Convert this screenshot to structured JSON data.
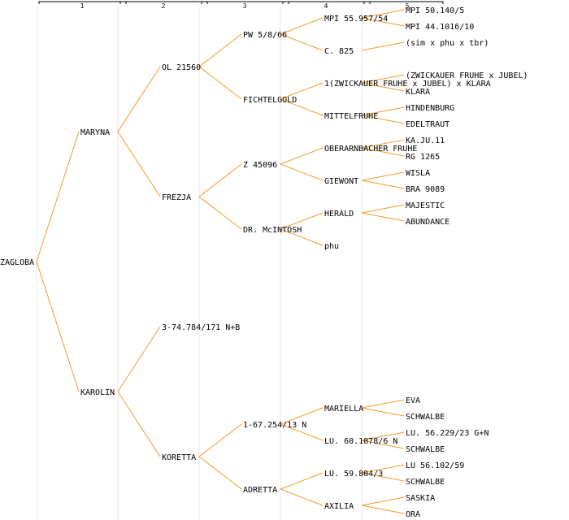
{
  "columns": [
    "1",
    "2",
    "3",
    "4",
    "5"
  ],
  "colors": {
    "edge": "#f39c2a",
    "text": "#000000",
    "grid": "#e8e8e8"
  },
  "nodes": {
    "g0": "ZAGLOBA",
    "g1a": "MARYNA",
    "g1b": "KAROLIN",
    "g2a": "OL 21560",
    "g2b": "FREZJA",
    "g2c": "3-74.784/171 N+B",
    "g2d": "KORETTA",
    "g3a": "PW 5/8/66",
    "g3b": "FICHTELGOLD",
    "g3c": "Z 45096",
    "g3d": "DR. McINTOSH",
    "g3e": "1-67.254/13 N",
    "g3f": "ADRETTA",
    "g4a": "MPI 55.957/54",
    "g4b": "C. 825",
    "g4c": "1(ZWICKAUER FRUHE x JUBEL) x KLARA",
    "g4d": "MITTELFRUHE",
    "g4e": "OBERARNBACHER FRUHE",
    "g4f": "GIEWONT",
    "g4g": "HERALD",
    "g4h": "phu",
    "g4i": "MARIELLA",
    "g4j": "LU. 60.1078/6 N",
    "g4k": "LU. 59.804/3",
    "g4l": "AXILIA",
    "g5a": "MPI 50.140/5",
    "g5b": "MPI 44.1016/10",
    "g5c": "(sim x phu x tbr)",
    "g5d1": "(ZWICKAUER FRUHE x JUBEL)",
    "g5d2": "KLARA",
    "g5e": "HINDENBURG",
    "g5f": "EDELTRAUT",
    "g5g": "KA.JU.11",
    "g5h": "RG 1265",
    "g5i": "WISLA",
    "g5j": "BRA 9089",
    "g5k": "MAJESTIC",
    "g5l": "ABUNDANCE",
    "g5m": "EVA",
    "g5n": "SCHWALBE",
    "g5o": "LU. 56.229/23 G+N",
    "g5p": "SCHWALBE",
    "g5q": "LU 56.102/59",
    "g5r": "SCHWALBE",
    "g5s": "SASKIA",
    "g5t": "ORA"
  }
}
